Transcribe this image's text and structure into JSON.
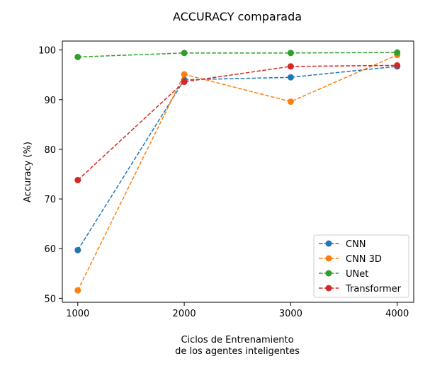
{
  "chart_data": {
    "type": "line",
    "title": "ACCURACY comparada",
    "xlabel_lines": [
      "Ciclos de Entrenamiento",
      "de los agentes inteligentes"
    ],
    "ylabel": "Accuracy (%)",
    "x": [
      1000,
      2000,
      3000,
      4000
    ],
    "x_ticks": [
      1000,
      2000,
      3000,
      4000
    ],
    "y_ticks": [
      50,
      60,
      70,
      80,
      90,
      100
    ],
    "xlim": [
      855,
      4155
    ],
    "ylim": [
      49.2,
      101.8
    ],
    "grid": false,
    "legend_position": "bottom-right",
    "line_style": "dashed",
    "marker": "circle",
    "series": [
      {
        "name": "CNN",
        "color": "#1f77b4",
        "values": [
          59.7,
          94.0,
          94.5,
          96.7
        ]
      },
      {
        "name": "CNN 3D",
        "color": "#ff7f0e",
        "values": [
          51.6,
          95.1,
          89.6,
          99.0
        ]
      },
      {
        "name": "UNet",
        "color": "#2ca02c",
        "values": [
          98.6,
          99.4,
          99.4,
          99.5
        ]
      },
      {
        "name": "Transformer",
        "color": "#d62728",
        "values": [
          73.8,
          93.6,
          96.7,
          96.9
        ]
      }
    ]
  }
}
